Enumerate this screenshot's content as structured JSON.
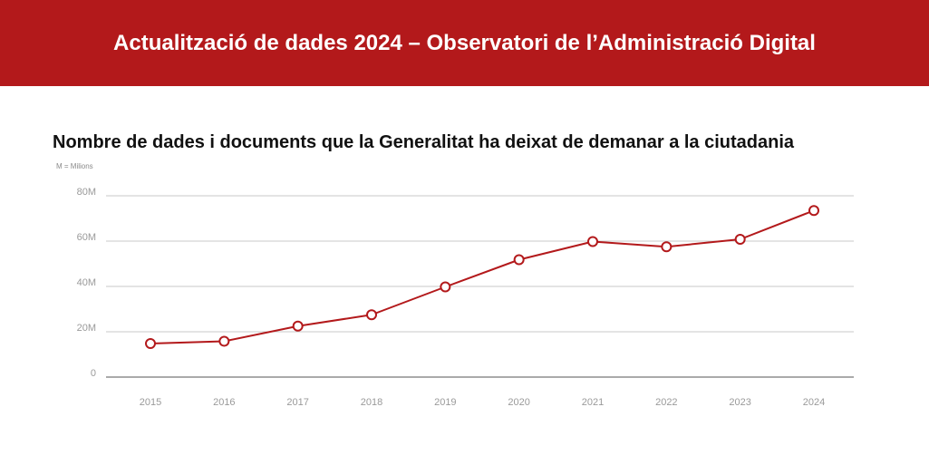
{
  "banner": {
    "title": "Actualització de dades 2024 – Observatori de l’Administració Digital"
  },
  "colors": {
    "banner": "#b3191b",
    "line": "#b3191b",
    "grid": "#c8c8c8",
    "axis": "#aaaaaa"
  },
  "chart_data": {
    "type": "line",
    "title": "Nombre de dades i documents que la Generalitat ha deixat de demanar a la ciutadania",
    "unit_note": "M = Milions",
    "xlabel": "",
    "ylabel": "",
    "ylim": [
      0,
      80
    ],
    "y_ticks": [
      {
        "value": 0,
        "label": "0"
      },
      {
        "value": 20,
        "label": "20M"
      },
      {
        "value": 40,
        "label": "40M"
      },
      {
        "value": 60,
        "label": "60M"
      },
      {
        "value": 80,
        "label": "80M"
      }
    ],
    "grid": true,
    "legend": "none",
    "categories": [
      "2015",
      "2016",
      "2017",
      "2018",
      "2019",
      "2020",
      "2021",
      "2022",
      "2023",
      "2024"
    ],
    "series": [
      {
        "values": [
          14.8,
          15.8,
          22.5,
          27.5,
          39.8,
          51.8,
          59.8,
          57.5,
          60.8,
          73.5
        ]
      }
    ]
  }
}
